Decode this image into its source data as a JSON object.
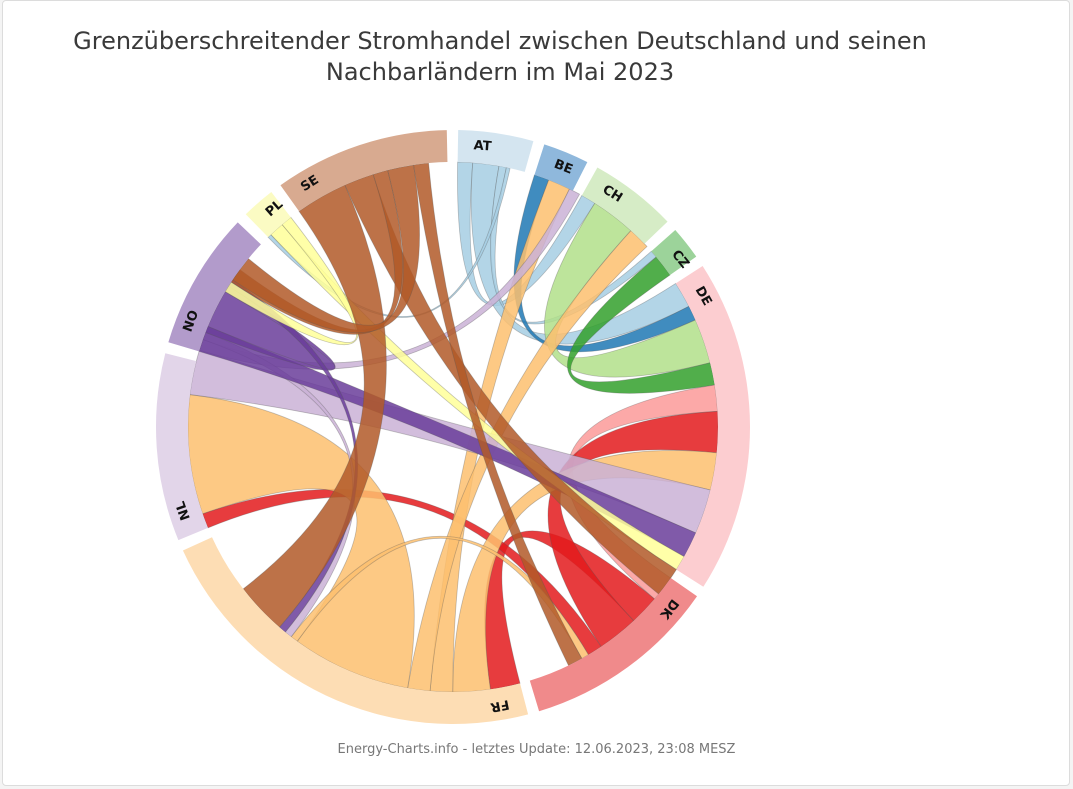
{
  "title": {
    "line1": "Grenzüberschreitender Stromhandel zwischen Deutschland und seinen",
    "line2": "Nachbarländern im Mai 2023"
  },
  "footer": "Energy-Charts.info - letztes Update: 12.06.2023, 23:08 MESZ",
  "chart_data": {
    "type": "chord",
    "title": "Grenzüberschreitender Stromhandel zwischen Deutschland und seinen Nachbarländern im Mai 2023",
    "nodes": [
      {
        "name": "AT",
        "value": 9.0,
        "color": "#d4e5f0",
        "flow_color": "#a6cee3"
      },
      {
        "name": "BE",
        "value": 5.5,
        "color": "#8fb8dc",
        "flow_color": "#1f78b4"
      },
      {
        "name": "CH",
        "value": 10.5,
        "color": "#d6ecc6",
        "flow_color": "#b2df8a"
      },
      {
        "name": "CZ",
        "value": 4.0,
        "color": "#9cd39a",
        "flow_color": "#33a02c"
      },
      {
        "name": "DE",
        "value": 40.0,
        "color": "#fccdd0",
        "flow_color": "#fb9a99"
      },
      {
        "name": "DK",
        "value": 23.5,
        "color": "#f08a8b",
        "flow_color": "#e31a1c"
      },
      {
        "name": "FR",
        "value": 49.0,
        "color": "#fdddb4",
        "flow_color": "#fdbf6f"
      },
      {
        "name": "NL",
        "value": 22.5,
        "color": "#e2d5e9",
        "flow_color": "#cab2d6"
      },
      {
        "name": "NO",
        "value": 16.5,
        "color": "#b29bcb",
        "flow_color": "#6a3d9a"
      },
      {
        "name": "PL",
        "value": 4.0,
        "color": "#fbfbc3",
        "flow_color": "#ffff99"
      },
      {
        "name": "SE",
        "value": 21.0,
        "color": "#d8aa90",
        "flow_color": "#b15928"
      }
    ],
    "flows": [
      {
        "source": "AT",
        "target": "CH",
        "value": 2.0
      },
      {
        "source": "AT",
        "target": "DE",
        "value": 3.5
      },
      {
        "source": "AT",
        "target": "CZ",
        "value": 1.0
      },
      {
        "source": "AT",
        "target": "PL",
        "value": 0.5
      },
      {
        "source": "BE",
        "target": "DE",
        "value": 2.0
      },
      {
        "source": "CH",
        "target": "DE",
        "value": 6.0
      },
      {
        "source": "CZ",
        "target": "DE",
        "value": 3.0
      },
      {
        "source": "DE",
        "target": "DK",
        "value": 3.5
      },
      {
        "source": "DK",
        "target": "FR",
        "value": 4.0
      },
      {
        "source": "DK",
        "target": "DE",
        "value": 5.5
      },
      {
        "source": "DK",
        "target": "NL",
        "value": 2.0
      },
      {
        "source": "FR",
        "target": "DE",
        "value": 5.0
      },
      {
        "source": "FR",
        "target": "BE",
        "value": 3.0
      },
      {
        "source": "FR",
        "target": "CH",
        "value": 3.0
      },
      {
        "source": "FR",
        "target": "NL",
        "value": 16.0
      },
      {
        "source": "FR",
        "target": "DK",
        "value": 1.0
      },
      {
        "source": "NL",
        "target": "DE",
        "value": 6.0
      },
      {
        "source": "NL",
        "target": "BE",
        "value": 1.5
      },
      {
        "source": "NL",
        "target": "FR",
        "value": 1.0
      },
      {
        "source": "NO",
        "target": "DE",
        "value": 3.5
      },
      {
        "source": "NO",
        "target": "NL",
        "value": 6.0
      },
      {
        "source": "NO",
        "target": "FR",
        "value": 1.0
      },
      {
        "source": "PL",
        "target": "DE",
        "value": 2.0
      },
      {
        "source": "PL",
        "target": "NL",
        "value": 1.5
      },
      {
        "source": "SE",
        "target": "FR",
        "value": 7.0
      },
      {
        "source": "SE",
        "target": "DE",
        "value": 4.0
      },
      {
        "source": "SE",
        "target": "NL",
        "value": 2.0
      },
      {
        "source": "SE",
        "target": "NO",
        "value": 3.5
      },
      {
        "source": "SE",
        "target": "DK",
        "value": 2.0
      }
    ]
  }
}
